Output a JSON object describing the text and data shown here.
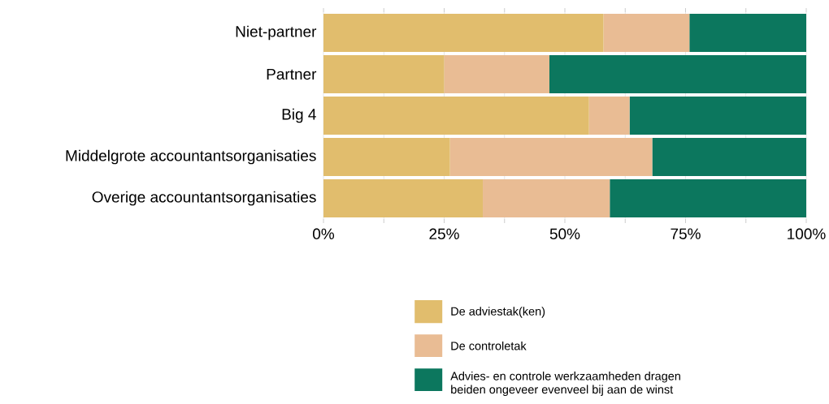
{
  "chart_data": {
    "type": "bar",
    "orientation": "horizontal",
    "stacked": true,
    "categories": [
      "Niet-partner",
      "Partner",
      "Big 4",
      "Middelgrote accountantsorganisaties",
      "Overige accountantsorganisaties"
    ],
    "series": [
      {
        "name": "De adviestak(ken)",
        "color": "#e1bd6d",
        "values": [
          58.0,
          25.0,
          55.0,
          26.2,
          33.0
        ]
      },
      {
        "name": "De controletak",
        "color": "#e9bc94",
        "values": [
          17.8,
          21.8,
          8.4,
          41.9,
          26.3
        ]
      },
      {
        "name": "Advies- en controle werkzaamheden dragen beiden ongeveer evenveel bij aan de winst",
        "color": "#0c775e",
        "values": [
          24.2,
          53.2,
          36.6,
          31.9,
          40.7
        ]
      }
    ],
    "xlim": [
      0,
      100
    ],
    "xticks": [
      {
        "value": 0,
        "label": "0%"
      },
      {
        "value": 12.5,
        "label": null
      },
      {
        "value": 25,
        "label": "25%"
      },
      {
        "value": 37.5,
        "label": null
      },
      {
        "value": 50,
        "label": "50%"
      },
      {
        "value": 62.5,
        "label": null
      },
      {
        "value": 75,
        "label": "75%"
      },
      {
        "value": 87.5,
        "label": null
      },
      {
        "value": 100,
        "label": "100%"
      }
    ],
    "grid": "x",
    "legend": "bottom"
  }
}
